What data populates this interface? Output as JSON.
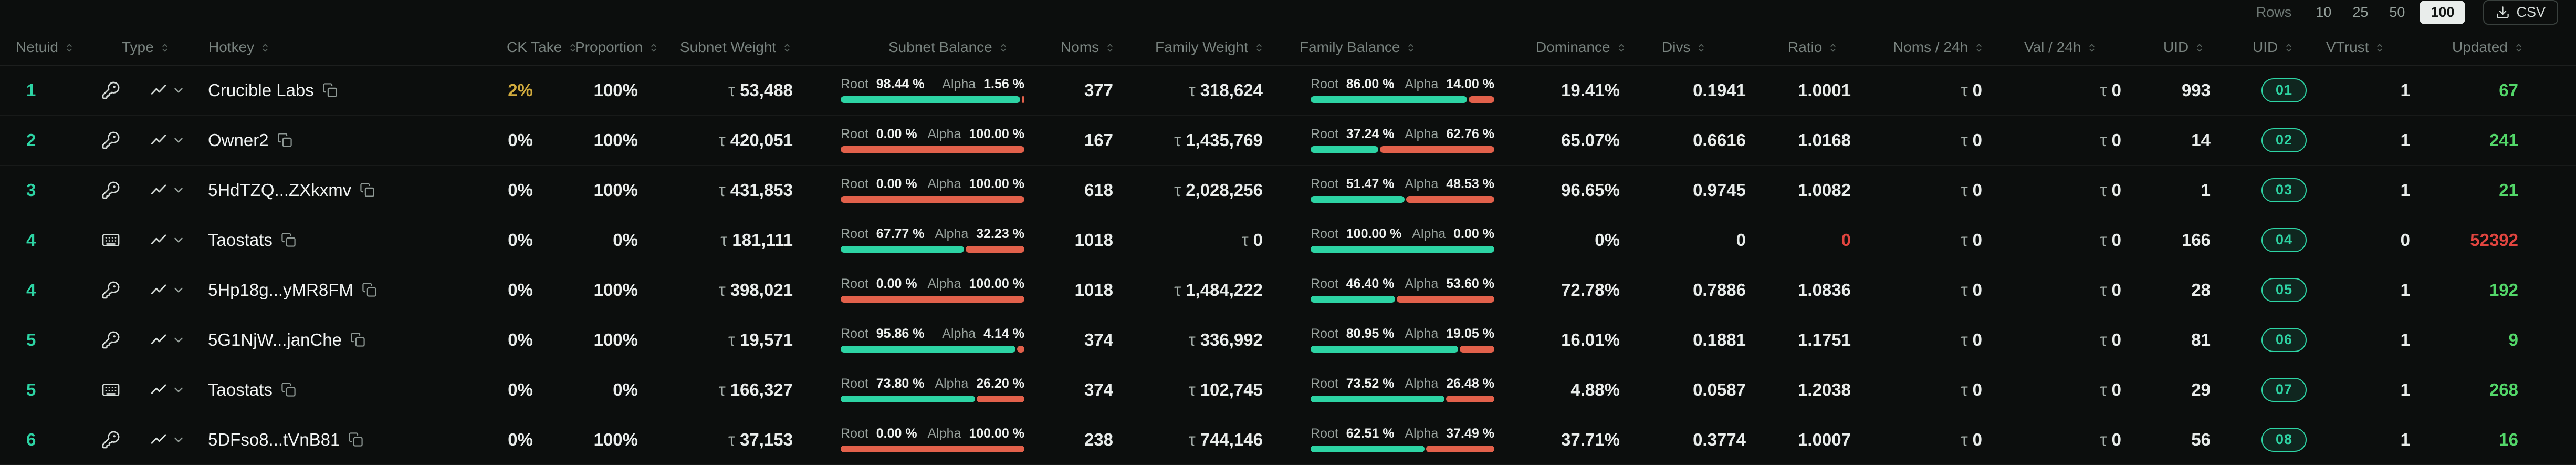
{
  "symbols": {
    "tau": "τ"
  },
  "labels": {
    "root": "Root",
    "alpha": "Alpha"
  },
  "toolbar": {
    "rows_label": "Rows",
    "page_sizes": [
      "10",
      "25",
      "50",
      "100"
    ],
    "active_page_size": "100",
    "csv_label": "CSV"
  },
  "colors": {
    "teal": "#2dd4a4",
    "alpha_orange": "#e2614b",
    "green": "#53d769",
    "red": "#e2453f",
    "gold": "#d2ac3e"
  },
  "columns": [
    {
      "key": "netuid",
      "label": "Netuid"
    },
    {
      "key": "type",
      "label": "Type"
    },
    {
      "key": "hotkey",
      "label": "Hotkey"
    },
    {
      "key": "ck_take",
      "label": "CK Take"
    },
    {
      "key": "proportion",
      "label": "Proportion"
    },
    {
      "key": "subnet_weight",
      "label": "Subnet Weight"
    },
    {
      "key": "subnet_balance",
      "label": "Subnet Balance"
    },
    {
      "key": "noms",
      "label": "Noms"
    },
    {
      "key": "family_weight",
      "label": "Family Weight"
    },
    {
      "key": "family_balance",
      "label": "Family Balance"
    },
    {
      "key": "dominance",
      "label": "Dominance"
    },
    {
      "key": "divs",
      "label": "Divs"
    },
    {
      "key": "ratio",
      "label": "Ratio"
    },
    {
      "key": "noms_24h",
      "label": "Noms / 24h"
    },
    {
      "key": "val_24h",
      "label": "Val / 24h"
    },
    {
      "key": "uid",
      "label": "UID"
    },
    {
      "key": "uid_badge",
      "label": "UID"
    },
    {
      "key": "vtrust",
      "label": "VTrust"
    },
    {
      "key": "updated",
      "label": "Updated"
    }
  ],
  "rows": [
    {
      "netuid": "1",
      "type_icon": "key-icon",
      "hotkey": "Crucible Labs",
      "ck_take": "2%",
      "ck_take_highlight": true,
      "proportion": "100%",
      "subnet_weight": "53,488",
      "subnet_balance": {
        "root_pct": 98.44,
        "alpha_pct": 1.56,
        "root_label": "98.44 %",
        "alpha_label": "1.56 %"
      },
      "noms": "377",
      "family_weight": "318,624",
      "family_balance": {
        "root_pct": 86.0,
        "alpha_pct": 14.0,
        "root_label": "86.00 %",
        "alpha_label": "14.00 %"
      },
      "dominance": "19.41%",
      "divs": "0.1941",
      "ratio": "1.0001",
      "ratio_alert": false,
      "noms_24h": "0",
      "val_24h": "0",
      "uid": "993",
      "uid_badge": "01",
      "vtrust": "1",
      "updated": "67",
      "updated_alert": false
    },
    {
      "netuid": "2",
      "type_icon": "key-icon",
      "hotkey": "Owner2",
      "ck_take": "0%",
      "ck_take_highlight": false,
      "proportion": "100%",
      "subnet_weight": "420,051",
      "subnet_balance": {
        "root_pct": 0.0,
        "alpha_pct": 100.0,
        "root_label": "0.00 %",
        "alpha_label": "100.00 %"
      },
      "noms": "167",
      "family_weight": "1,435,769",
      "family_balance": {
        "root_pct": 37.24,
        "alpha_pct": 62.76,
        "root_label": "37.24 %",
        "alpha_label": "62.76 %"
      },
      "dominance": "65.07%",
      "divs": "0.6616",
      "ratio": "1.0168",
      "ratio_alert": false,
      "noms_24h": "0",
      "val_24h": "0",
      "uid": "14",
      "uid_badge": "02",
      "vtrust": "1",
      "updated": "241",
      "updated_alert": false
    },
    {
      "netuid": "3",
      "type_icon": "key-icon",
      "hotkey": "5HdTZQ...ZXkxmv",
      "ck_take": "0%",
      "ck_take_highlight": false,
      "proportion": "100%",
      "subnet_weight": "431,853",
      "subnet_balance": {
        "root_pct": 0.0,
        "alpha_pct": 100.0,
        "root_label": "0.00 %",
        "alpha_label": "100.00 %"
      },
      "noms": "618",
      "family_weight": "2,028,256",
      "family_balance": {
        "root_pct": 51.47,
        "alpha_pct": 48.53,
        "root_label": "51.47 %",
        "alpha_label": "48.53 %"
      },
      "dominance": "96.65%",
      "divs": "0.9745",
      "ratio": "1.0082",
      "ratio_alert": false,
      "noms_24h": "0",
      "val_24h": "0",
      "uid": "1",
      "uid_badge": "03",
      "vtrust": "1",
      "updated": "21",
      "updated_alert": false
    },
    {
      "netuid": "4",
      "type_icon": "keyboard-icon",
      "hotkey": "Taostats",
      "ck_take": "0%",
      "ck_take_highlight": false,
      "proportion": "0%",
      "subnet_weight": "181,111",
      "subnet_balance": {
        "root_pct": 67.77,
        "alpha_pct": 32.23,
        "root_label": "67.77 %",
        "alpha_label": "32.23 %"
      },
      "noms": "1018",
      "family_weight": "0",
      "family_balance": {
        "root_pct": 100.0,
        "alpha_pct": 0.0,
        "root_label": "100.00 %",
        "alpha_label": "0.00 %"
      },
      "dominance": "0%",
      "divs": "0",
      "ratio": "0",
      "ratio_alert": true,
      "noms_24h": "0",
      "val_24h": "0",
      "uid": "166",
      "uid_badge": "04",
      "vtrust": "0",
      "updated": "52392",
      "updated_alert": true
    },
    {
      "netuid": "4",
      "type_icon": "key-icon",
      "hotkey": "5Hp18g...yMR8FM",
      "ck_take": "0%",
      "ck_take_highlight": false,
      "proportion": "100%",
      "subnet_weight": "398,021",
      "subnet_balance": {
        "root_pct": 0.0,
        "alpha_pct": 100.0,
        "root_label": "0.00 %",
        "alpha_label": "100.00 %"
      },
      "noms": "1018",
      "family_weight": "1,484,222",
      "family_balance": {
        "root_pct": 46.4,
        "alpha_pct": 53.6,
        "root_label": "46.40 %",
        "alpha_label": "53.60 %"
      },
      "dominance": "72.78%",
      "divs": "0.7886",
      "ratio": "1.0836",
      "ratio_alert": false,
      "noms_24h": "0",
      "val_24h": "0",
      "uid": "28",
      "uid_badge": "05",
      "vtrust": "1",
      "updated": "192",
      "updated_alert": false
    },
    {
      "netuid": "5",
      "type_icon": "key-icon",
      "hotkey": "5G1NjW...janChe",
      "ck_take": "0%",
      "ck_take_highlight": false,
      "proportion": "100%",
      "subnet_weight": "19,571",
      "subnet_balance": {
        "root_pct": 95.86,
        "alpha_pct": 4.14,
        "root_label": "95.86 %",
        "alpha_label": "4.14 %"
      },
      "noms": "374",
      "family_weight": "336,992",
      "family_balance": {
        "root_pct": 80.95,
        "alpha_pct": 19.05,
        "root_label": "80.95 %",
        "alpha_label": "19.05 %"
      },
      "dominance": "16.01%",
      "divs": "0.1881",
      "ratio": "1.1751",
      "ratio_alert": false,
      "noms_24h": "0",
      "val_24h": "0",
      "uid": "81",
      "uid_badge": "06",
      "vtrust": "1",
      "updated": "9",
      "updated_alert": false
    },
    {
      "netuid": "5",
      "type_icon": "keyboard-icon",
      "hotkey": "Taostats",
      "ck_take": "0%",
      "ck_take_highlight": false,
      "proportion": "0%",
      "subnet_weight": "166,327",
      "subnet_balance": {
        "root_pct": 73.8,
        "alpha_pct": 26.2,
        "root_label": "73.80 %",
        "alpha_label": "26.20 %"
      },
      "noms": "374",
      "family_weight": "102,745",
      "family_balance": {
        "root_pct": 73.52,
        "alpha_pct": 26.48,
        "root_label": "73.52 %",
        "alpha_label": "26.48 %"
      },
      "dominance": "4.88%",
      "divs": "0.0587",
      "ratio": "1.2038",
      "ratio_alert": false,
      "noms_24h": "0",
      "val_24h": "0",
      "uid": "29",
      "uid_badge": "07",
      "vtrust": "1",
      "updated": "268",
      "updated_alert": false
    },
    {
      "netuid": "6",
      "type_icon": "key-icon",
      "hotkey": "5DFso8...tVnB81",
      "ck_take": "0%",
      "ck_take_highlight": false,
      "proportion": "100%",
      "subnet_weight": "37,153",
      "subnet_balance": {
        "root_pct": 0.0,
        "alpha_pct": 100.0,
        "root_label": "0.00 %",
        "alpha_label": "100.00 %"
      },
      "noms": "238",
      "family_weight": "744,146",
      "family_balance": {
        "root_pct": 62.51,
        "alpha_pct": 37.49,
        "root_label": "62.51 %",
        "alpha_label": "37.49 %"
      },
      "dominance": "37.71%",
      "divs": "0.3774",
      "ratio": "1.0007",
      "ratio_alert": false,
      "noms_24h": "0",
      "val_24h": "0",
      "uid": "56",
      "uid_badge": "08",
      "vtrust": "1",
      "updated": "16",
      "updated_alert": false
    }
  ]
}
